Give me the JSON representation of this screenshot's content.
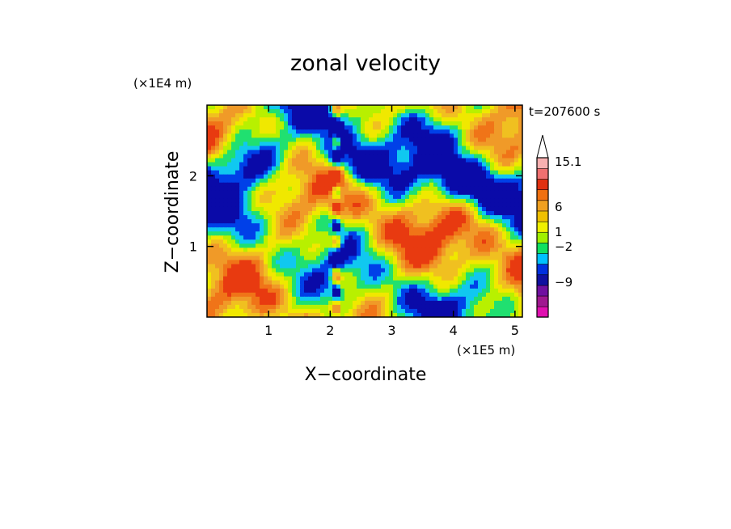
{
  "chart_data": {
    "type": "heatmap",
    "title": "zonal velocity",
    "time_label": "t=207600 s",
    "x_axis": {
      "label": "X−coordinate",
      "unit": "(×1E5 m)",
      "range": [
        0,
        5.12
      ],
      "ticks": [
        1,
        2,
        3,
        4,
        5
      ],
      "tick_labels": [
        "1",
        "2",
        "3",
        "4",
        "5"
      ]
    },
    "y_axis": {
      "label": "Z−coordinate",
      "unit": "(×1E4 m)",
      "range": [
        0,
        3.0
      ],
      "ticks": [
        1,
        2
      ],
      "tick_labels": [
        "1",
        "2"
      ]
    },
    "colorbar": {
      "labels": [
        {
          "level": 15.1,
          "text": "15.1"
        },
        {
          "level": 6,
          "text": "6"
        },
        {
          "level": 1,
          "text": "1"
        },
        {
          "level": -2,
          "text": "−2"
        },
        {
          "level": -9,
          "text": "−9"
        }
      ],
      "colors": [
        "#e010b0",
        "#a01890",
        "#7010a0",
        "#1010a0",
        "#0030e0",
        "#00c0ff",
        "#10e060",
        "#a0f000",
        "#f0f000",
        "#f0c000",
        "#f0a020",
        "#f07010",
        "#e03010",
        "#f07070",
        "#f8b0b0"
      ]
    },
    "colors": {
      "background_field": "#f0c020"
    }
  }
}
